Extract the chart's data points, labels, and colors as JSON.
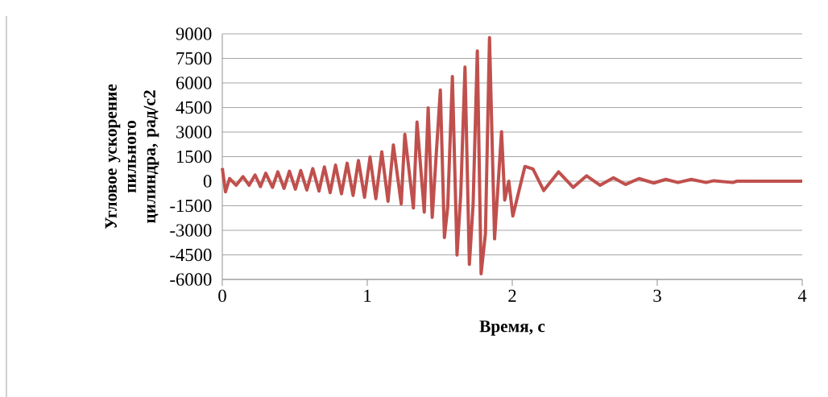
{
  "chart_data": {
    "type": "line",
    "xlabel": "Время, с",
    "ylabel": "Угловое ускорение пильного цилиндра, рад/с2",
    "x": [
      0,
      0.022,
      0.05,
      0.096,
      0.143,
      0.185,
      0.226,
      0.263,
      0.3,
      0.346,
      0.383,
      0.426,
      0.463,
      0.504,
      0.541,
      0.583,
      0.624,
      0.667,
      0.704,
      0.744,
      0.781,
      0.822,
      0.861,
      0.902,
      0.939,
      0.981,
      1.019,
      1.059,
      1.1,
      1.143,
      1.18,
      1.234,
      1.259,
      1.318,
      1.343,
      1.393,
      1.42,
      1.448,
      1.504,
      1.532,
      1.555,
      1.587,
      1.619,
      1.645,
      1.674,
      1.704,
      1.73,
      1.759,
      1.785,
      1.815,
      1.843,
      1.878,
      1.926,
      1.948,
      1.976,
      2.004,
      2.087,
      2.143,
      2.217,
      2.319,
      2.42,
      2.513,
      2.606,
      2.698,
      2.781,
      2.874,
      2.976,
      3.059,
      3.143,
      3.235,
      3.337,
      3.39,
      3.522,
      3.55,
      4.0
    ],
    "values": [
      800,
      -650,
      160,
      -250,
      280,
      -250,
      380,
      -330,
      490,
      -380,
      570,
      -440,
      610,
      -490,
      650,
      -540,
      770,
      -600,
      870,
      -700,
      980,
      -770,
      1100,
      -870,
      1260,
      -980,
      1480,
      -1070,
      1800,
      -1230,
      2210,
      -1390,
      2870,
      -1640,
      3610,
      -1890,
      4480,
      -2210,
      5570,
      -3440,
      -1560,
      6390,
      -4510,
      -740,
      6970,
      -5080,
      -1390,
      7950,
      -5660,
      -3200,
      8770,
      -3520,
      3030,
      -1150,
      0,
      -2130,
      900,
      740,
      -570,
      570,
      -380,
      330,
      -250,
      210,
      -200,
      160,
      -110,
      110,
      -80,
      110,
      -80,
      30,
      -80,
      0,
      0
    ],
    "color": "#c0504d",
    "xlim": [
      0,
      4
    ],
    "xticks": [
      0,
      1,
      2,
      3,
      4
    ],
    "ylim": [
      -6000,
      9000
    ],
    "yticks": [
      -6000,
      -4500,
      -3000,
      -1500,
      0,
      1500,
      3000,
      4500,
      6000,
      7500,
      9000
    ],
    "grid": "y"
  }
}
